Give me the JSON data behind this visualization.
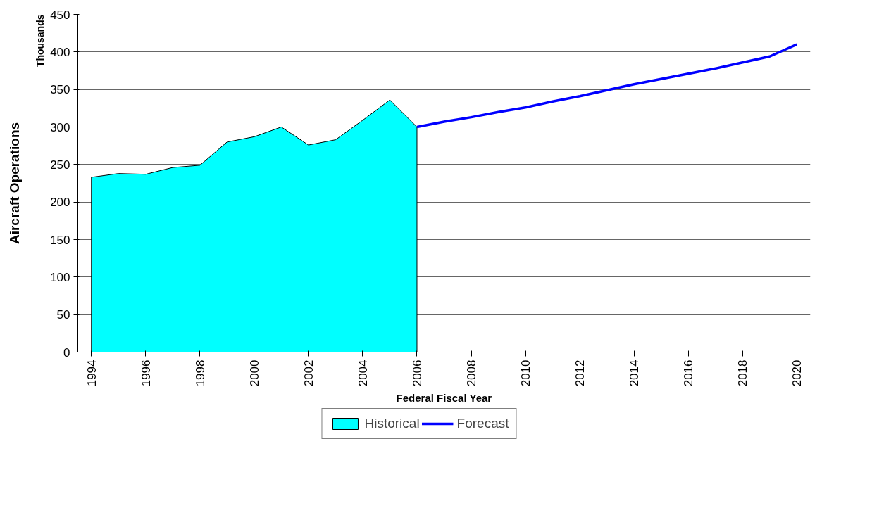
{
  "chart_data": {
    "type": "area",
    "xlabel": "Federal Fiscal Year",
    "ylabel": "Aircraft Operations",
    "annotations": [
      "Thousands"
    ],
    "series": [
      {
        "name": "Historical",
        "color": "#00ffff",
        "x": [
          1994,
          1995,
          1996,
          1997,
          1998,
          1999,
          2000,
          2001,
          2002,
          2003,
          2004,
          2005,
          2006
        ],
        "values": [
          233,
          238,
          237,
          246,
          249,
          280,
          287,
          300,
          276,
          283,
          309,
          336,
          300
        ]
      },
      {
        "name": "Forecast",
        "type": "line",
        "color": "#0000ff",
        "x": [
          2006,
          2007,
          2008,
          2009,
          2010,
          2011,
          2012,
          2013,
          2014,
          2015,
          2016,
          2017,
          2018,
          2019,
          2020
        ],
        "values": [
          300,
          307,
          313,
          320,
          326,
          334,
          341,
          349,
          357,
          364,
          371,
          378,
          386,
          394,
          410
        ]
      }
    ],
    "xlim": [
      1993.5,
      2020.5
    ],
    "xticks": [
      1994,
      1996,
      1998,
      2000,
      2002,
      2004,
      2006,
      2008,
      2010,
      2012,
      2014,
      2016,
      2018,
      2020
    ],
    "ylim": [
      0,
      450
    ],
    "yticks": [
      0,
      50,
      100,
      150,
      200,
      250,
      300,
      350,
      400,
      450
    ],
    "grid": "y",
    "legend": "bottom",
    "line_style": "solid",
    "marker": "none"
  }
}
